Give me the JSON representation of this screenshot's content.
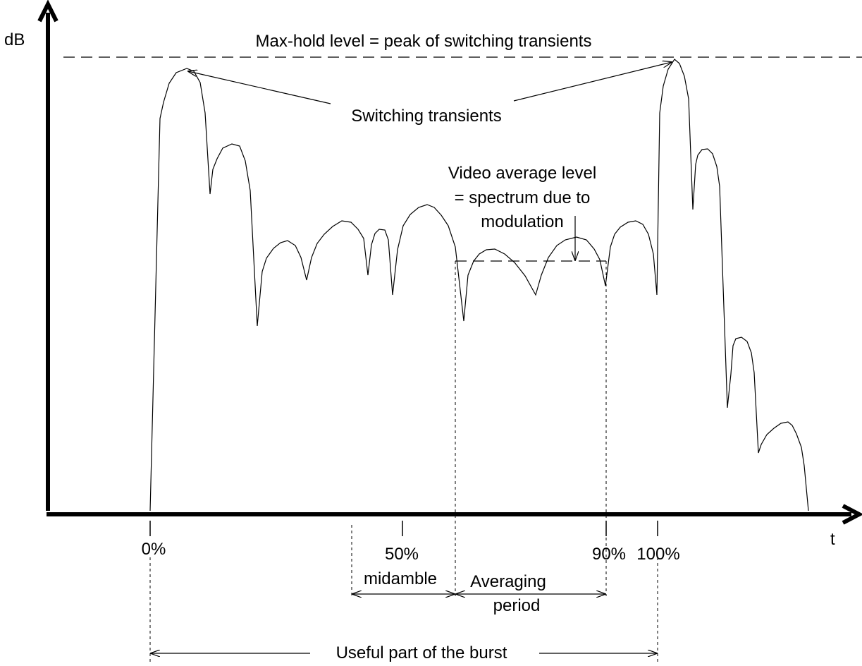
{
  "labels": {
    "y_axis": "dB",
    "x_axis": "t",
    "max_hold": "Max-hold level = peak of switching transients",
    "switching_transients": "Switching transients",
    "video_avg_line1": "Video average level",
    "video_avg_line2": "= spectrum due to",
    "video_avg_line3": "modulation",
    "tick_0": "0%",
    "tick_50": "50%",
    "midamble": "midamble",
    "tick_90": "90%",
    "tick_100": "100%",
    "averaging_line1": "Averaging",
    "averaging_line2": "period",
    "useful_part": "Useful part of the burst"
  },
  "colors": {
    "line": "#000000",
    "background": "#ffffff"
  }
}
